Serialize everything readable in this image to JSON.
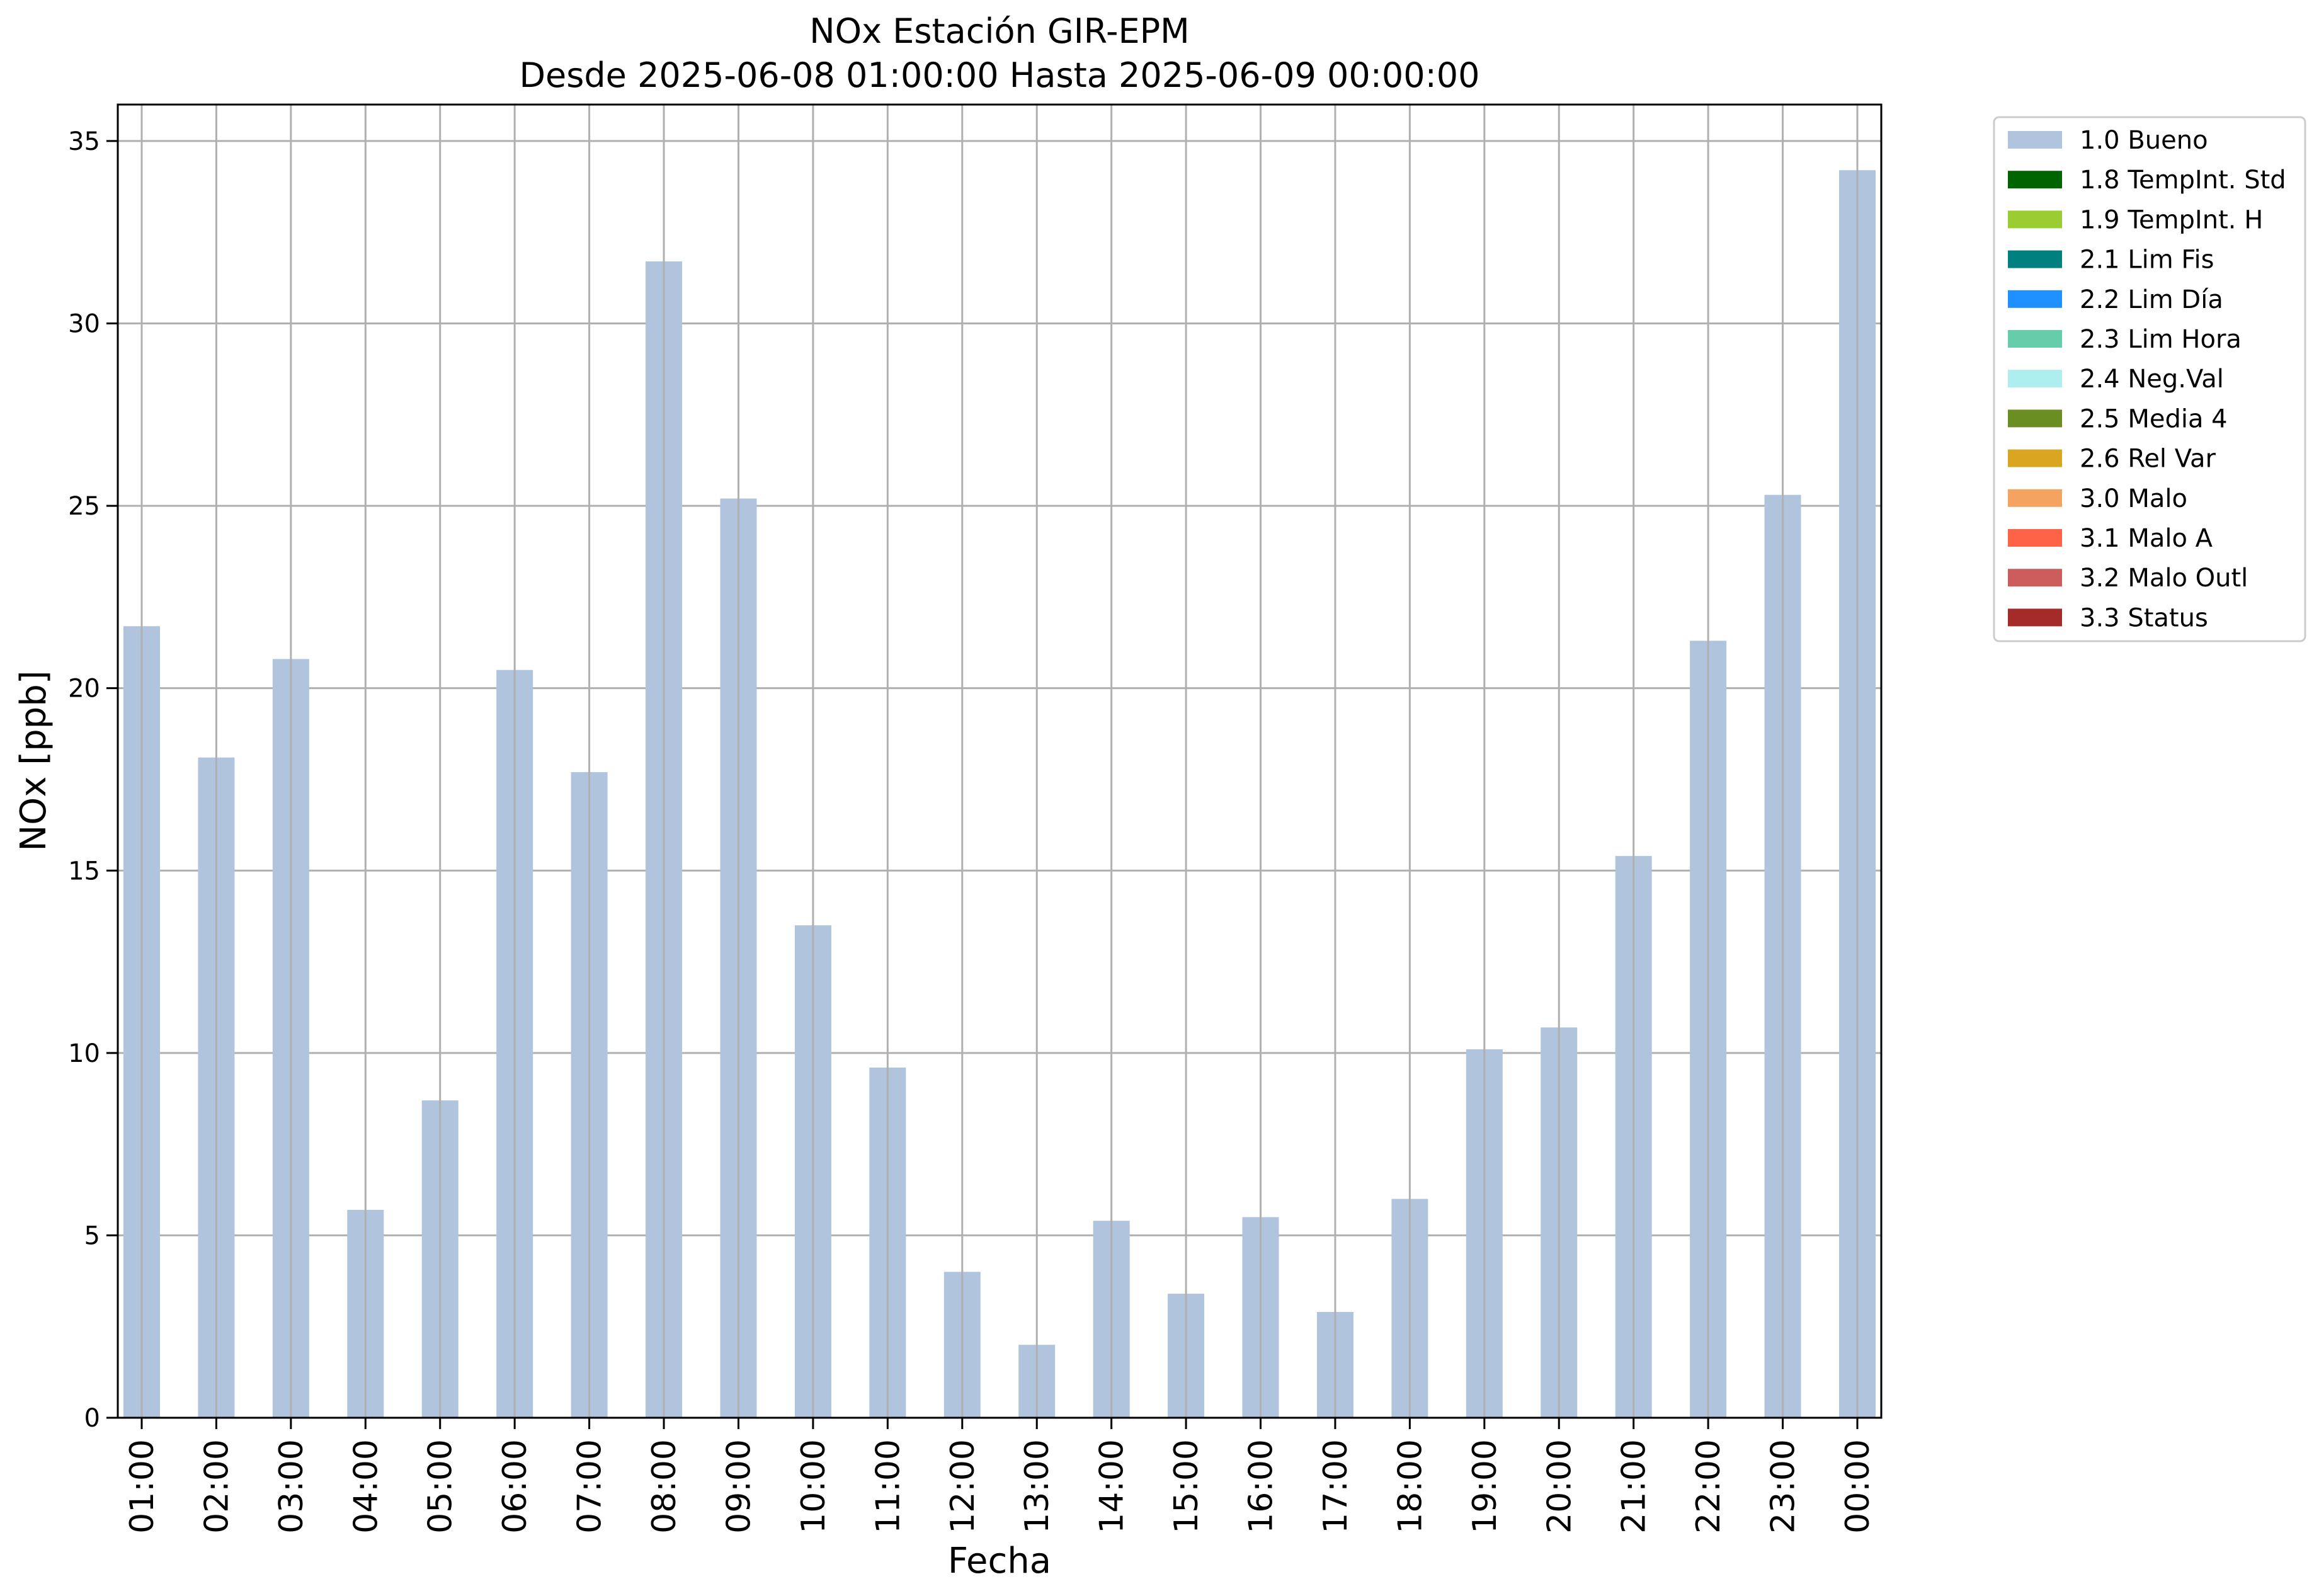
{
  "chart_data": {
    "type": "bar",
    "title": "NOx Estación GIR-EPM",
    "subtitle": "Desde 2025-06-08 01:00:00 Hasta 2025-06-09 00:00:00",
    "xlabel": "Fecha",
    "ylabel": "NOx [ppb]",
    "ylim": [
      0,
      36
    ],
    "yticks": [
      "0",
      "5",
      "10",
      "15",
      "20",
      "25",
      "30",
      "35"
    ],
    "grid": true,
    "legend_position": "outside-right",
    "categories": [
      "01:00",
      "02:00",
      "03:00",
      "04:00",
      "05:00",
      "06:00",
      "07:00",
      "08:00",
      "09:00",
      "10:00",
      "11:00",
      "12:00",
      "13:00",
      "14:00",
      "15:00",
      "16:00",
      "17:00",
      "18:00",
      "19:00",
      "20:00",
      "21:00",
      "22:00",
      "23:00",
      "00:00"
    ],
    "series": [
      {
        "name": "1.0 Bueno",
        "color": "#b0c4de",
        "values": [
          21.7,
          18.1,
          20.8,
          5.7,
          8.7,
          20.5,
          17.7,
          31.7,
          25.2,
          13.5,
          9.6,
          4.0,
          2.0,
          5.4,
          3.4,
          5.5,
          2.9,
          6.0,
          10.1,
          10.7,
          15.4,
          21.3,
          25.3,
          34.2
        ]
      }
    ],
    "legend": [
      {
        "label": "1.0 Bueno",
        "color": "#b0c4de"
      },
      {
        "label": "1.8 TempInt. Std",
        "color": "#006400"
      },
      {
        "label": "1.9 TempInt. H",
        "color": "#9acd32"
      },
      {
        "label": "2.1 Lim Fis",
        "color": "#008080"
      },
      {
        "label": "2.2 Lim Día",
        "color": "#1e90ff"
      },
      {
        "label": "2.3 Lim Hora",
        "color": "#66cdaa"
      },
      {
        "label": "2.4 Neg.Val",
        "color": "#afeeee"
      },
      {
        "label": "2.5 Media 4",
        "color": "#6b8e23"
      },
      {
        "label": "2.6 Rel Var",
        "color": "#daa520"
      },
      {
        "label": "3.0 Malo",
        "color": "#f4a460"
      },
      {
        "label": "3.1 Malo A",
        "color": "#ff6347"
      },
      {
        "label": "3.2 Malo Outl",
        "color": "#cd5c5c"
      },
      {
        "label": "3.3 Status",
        "color": "#a52a2a"
      }
    ]
  }
}
